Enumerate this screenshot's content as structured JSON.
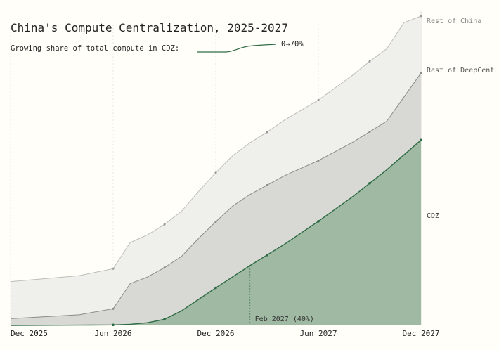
{
  "title": "China's Compute Centralization, 2025-2027",
  "subtitle": "Growing share of total compute in CDZ:",
  "sparkline_label": "0→70%",
  "annotation": "Feb 2027 (40%)",
  "colors": {
    "background": "#fffef8",
    "rest_of_china": "#efefec",
    "rest_of_deepcent": "#d8d8d4",
    "cdz": "#9fb9a2",
    "cdz_line": "#2f6b45",
    "top_line": "#bdbdb8",
    "mid_line": "#8a8a86"
  },
  "chart_data": {
    "type": "area",
    "stacked": true,
    "x_ticks": [
      "Dec 2025",
      "Jun 2026",
      "Dec 2026",
      "Jun 2027",
      "Dec 2027"
    ],
    "x_months": [
      0,
      6,
      12,
      18,
      24
    ],
    "series": [
      {
        "name": "CDZ",
        "x": [
          0,
          6,
          7,
          8,
          9,
          10,
          12,
          14,
          16,
          18,
          20,
          22,
          24
        ],
        "values": [
          0.0,
          0.2,
          0.5,
          1.2,
          2.7,
          6.5,
          16.7,
          26.6,
          36.0,
          46.3,
          57.2,
          69.2,
          82.4
        ]
      },
      {
        "name": "Rest of DeepCent",
        "x": [
          0,
          2,
          4,
          6,
          7,
          8,
          9,
          10,
          11,
          12,
          13,
          14,
          16,
          18,
          20,
          22,
          24
        ],
        "values": [
          3.0,
          3.8,
          4.6,
          7.2,
          18.1,
          20.3,
          23.0,
          24.2,
          27.1,
          29.4,
          31.5,
          31.6,
          30.5,
          27.0,
          24.2,
          21.6,
          29.8
        ]
      },
      {
        "name": "Rest of China",
        "x": [
          0,
          6,
          9,
          12,
          15,
          18,
          21,
          22,
          23,
          24
        ],
        "values": [
          16.5,
          17.8,
          19.2,
          21.8,
          23.6,
          26.9,
          31.3,
          32.2,
          33.1,
          25.3
        ]
      }
    ],
    "share_line": {
      "start": 0,
      "end": 70,
      "unit": "%"
    },
    "annotation_x_month": 14,
    "ylim": [
      0,
      140
    ]
  }
}
